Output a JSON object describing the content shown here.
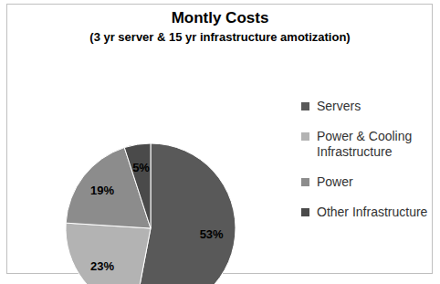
{
  "chart_data": {
    "type": "pie",
    "title": "Montly Costs",
    "subtitle": "(3 yr server & 15 yr infrastructure amotization)",
    "categories": [
      "Servers",
      "Power & Cooling Infrastructure",
      "Power",
      "Other Infrastructure"
    ],
    "values": [
      53,
      23,
      19,
      5
    ],
    "value_labels": [
      "53%",
      "23%",
      "19%",
      "5%"
    ],
    "colors": [
      "#595959",
      "#b3b3b3",
      "#8c8c8c",
      "#4a4a4a"
    ],
    "data_labels": true,
    "legend": "right"
  }
}
